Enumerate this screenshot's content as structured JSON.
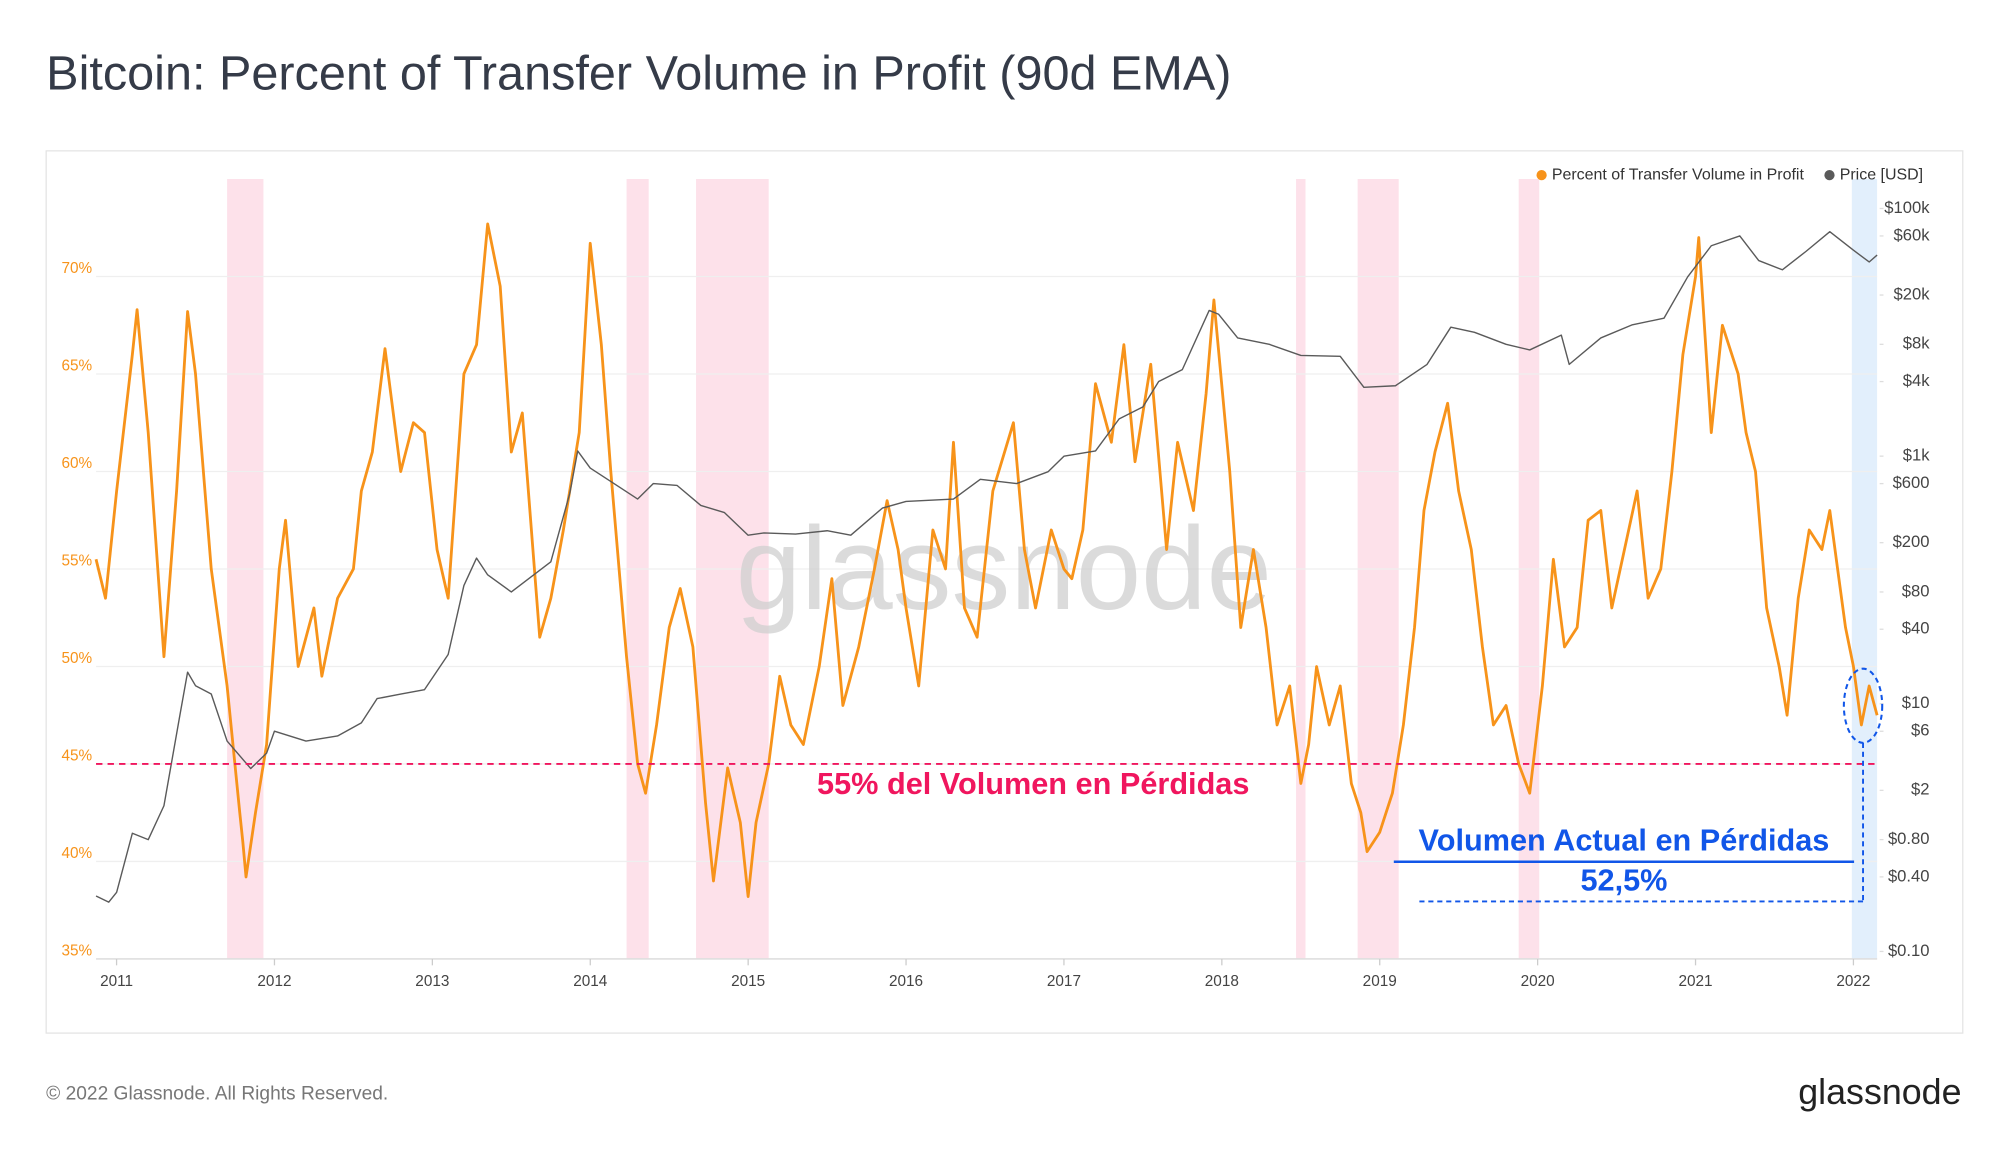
{
  "chart_data": {
    "type": "line",
    "title": "Bitcoin: Percent of Transfer Volume in Profit (90d EMA)",
    "footer": "© 2022 Glassnode. All Rights Reserved.",
    "brand": "glassnode",
    "watermark": "glassnode",
    "legend": "top-right",
    "grid": true,
    "y2log": true,
    "xlim": [
      2010.87,
      2022.15
    ],
    "xticks": [
      2011,
      2012,
      2013,
      2014,
      2015,
      2016,
      2017,
      2018,
      2019,
      2020,
      2021,
      2022
    ],
    "ylim": [
      35,
      75
    ],
    "yticks": [
      {
        "value": 35,
        "label": "35%"
      },
      {
        "value": 40,
        "label": "40%"
      },
      {
        "value": 45,
        "label": "45%"
      },
      {
        "value": 50,
        "label": "50%"
      },
      {
        "value": 55,
        "label": "55%"
      },
      {
        "value": 60,
        "label": "60%"
      },
      {
        "value": 65,
        "label": "65%"
      },
      {
        "value": 70,
        "label": "70%"
      }
    ],
    "y2lim": [
      0.087,
      173000
    ],
    "y2ticks": [
      {
        "value": 0.1,
        "label": "$0.10"
      },
      {
        "value": 0.4,
        "label": "$0.40"
      },
      {
        "value": 0.8,
        "label": "$0.80"
      },
      {
        "value": 2,
        "label": "$2"
      },
      {
        "value": 6,
        "label": "$6"
      },
      {
        "value": 10,
        "label": "$10"
      },
      {
        "value": 40,
        "label": "$40"
      },
      {
        "value": 80,
        "label": "$80"
      },
      {
        "value": 200,
        "label": "$200"
      },
      {
        "value": 600,
        "label": "$600"
      },
      {
        "value": 1000,
        "label": "$1k"
      },
      {
        "value": 4000,
        "label": "$4k"
      },
      {
        "value": 8000,
        "label": "$8k"
      },
      {
        "value": 20000,
        "label": "$20k"
      },
      {
        "value": 60000,
        "label": "$60k"
      },
      {
        "value": 100000,
        "label": "$100k"
      }
    ],
    "shaded_regions": [
      {
        "start": 2011.7,
        "end": 2011.93,
        "color": "#fde1ea"
      },
      {
        "start": 2014.23,
        "end": 2014.37,
        "color": "#fde1ea"
      },
      {
        "start": 2014.67,
        "end": 2015.13,
        "color": "#fde1ea"
      },
      {
        "start": 2018.47,
        "end": 2018.53,
        "color": "#fde1ea"
      },
      {
        "start": 2018.86,
        "end": 2019.12,
        "color": "#fde1ea"
      },
      {
        "start": 2019.88,
        "end": 2020.01,
        "color": "#fde1ea"
      },
      {
        "start": 2021.99,
        "end": 2022.15,
        "color": "#e2effc"
      }
    ],
    "reference_line": {
      "y": 45,
      "color": "#f0165e",
      "label": "55% del Volumen en Pérdidas"
    },
    "current_annotation": {
      "label": "Volumen Actual en Pérdidas",
      "value_text": "52,5%",
      "color": "#1156e8"
    },
    "series": [
      {
        "name": "Percent of Transfer Volume in Profit",
        "color": "#f7931a",
        "axis": "y",
        "x": [
          2010.87,
          2010.93,
          2011.0,
          2011.1,
          2011.13,
          2011.2,
          2011.3,
          2011.38,
          2011.45,
          2011.5,
          2011.6,
          2011.7,
          2011.78,
          2011.8,
          2011.82,
          2011.88,
          2011.95,
          2012.03,
          2012.07,
          2012.15,
          2012.25,
          2012.3,
          2012.4,
          2012.5,
          2012.55,
          2012.62,
          2012.7,
          2012.8,
          2012.88,
          2012.95,
          2013.03,
          2013.1,
          2013.2,
          2013.28,
          2013.35,
          2013.43,
          2013.5,
          2013.57,
          2013.68,
          2013.75,
          2013.83,
          2013.93,
          2014.0,
          2014.07,
          2014.13,
          2014.23,
          2014.3,
          2014.35,
          2014.42,
          2014.5,
          2014.57,
          2014.65,
          2014.73,
          2014.78,
          2014.87,
          2014.95,
          2015.0,
          2015.05,
          2015.13,
          2015.2,
          2015.27,
          2015.35,
          2015.45,
          2015.53,
          2015.6,
          2015.7,
          2015.8,
          2015.88,
          2015.95,
          2016.0,
          2016.08,
          2016.17,
          2016.25,
          2016.3,
          2016.37,
          2016.45,
          2016.55,
          2016.68,
          2016.75,
          2016.82,
          2016.92,
          2017.0,
          2017.05,
          2017.12,
          2017.2,
          2017.3,
          2017.38,
          2017.45,
          2017.55,
          2017.65,
          2017.72,
          2017.82,
          2017.9,
          2017.95,
          2018.05,
          2018.12,
          2018.2,
          2018.28,
          2018.35,
          2018.43,
          2018.5,
          2018.55,
          2018.6,
          2018.68,
          2018.75,
          2018.82,
          2018.88,
          2018.92,
          2019.0,
          2019.08,
          2019.15,
          2019.22,
          2019.28,
          2019.35,
          2019.43,
          2019.5,
          2019.58,
          2019.65,
          2019.72,
          2019.8,
          2019.88,
          2019.95,
          2020.03,
          2020.1,
          2020.17,
          2020.25,
          2020.32,
          2020.4,
          2020.47,
          2020.55,
          2020.63,
          2020.7,
          2020.78,
          2020.85,
          2020.92,
          2021.0,
          2021.02,
          2021.1,
          2021.17,
          2021.27,
          2021.32,
          2021.38,
          2021.45,
          2021.53,
          2021.58,
          2021.65,
          2021.72,
          2021.8,
          2021.85,
          2021.9,
          2021.95,
          2022.0,
          2022.05,
          2022.1,
          2022.15
        ],
        "values": [
          55.5,
          53.5,
          59,
          66,
          68.3,
          62,
          50.5,
          59,
          68.2,
          65,
          55,
          49,
          42.5,
          41,
          39.2,
          42.5,
          46,
          55,
          57.5,
          50,
          53,
          49.5,
          53.5,
          55,
          59,
          61,
          66.3,
          60,
          62.5,
          62,
          56,
          53.5,
          65,
          66.5,
          72.7,
          69.5,
          61,
          63,
          51.5,
          53.5,
          57,
          62,
          71.7,
          66.5,
          60,
          50.5,
          45,
          43.5,
          47,
          52,
          54,
          51,
          43,
          39,
          44.8,
          42,
          38.2,
          42,
          45,
          49.5,
          47,
          46,
          50,
          54.5,
          48,
          51,
          55,
          58.5,
          56,
          53,
          49,
          57,
          55,
          61.5,
          53,
          51.5,
          59,
          62.5,
          56,
          53,
          57,
          55,
          54.5,
          57,
          64.5,
          61.5,
          66.5,
          60.5,
          65.5,
          56,
          61.5,
          58,
          64,
          68.8,
          60,
          52,
          56,
          52,
          47,
          49,
          44,
          46,
          50,
          47,
          49,
          44,
          42.5,
          40.5,
          41.5,
          43.5,
          47,
          52,
          58,
          61,
          63.5,
          59,
          56,
          51,
          47,
          48,
          45,
          43.5,
          49,
          55.5,
          51,
          52,
          57.5,
          58,
          53,
          56,
          59,
          53.5,
          55,
          60,
          66,
          70,
          72,
          62,
          67.5,
          65,
          62,
          60,
          53,
          50,
          47.5,
          53.5,
          57,
          56,
          58,
          55,
          52,
          50,
          47,
          49,
          47.5
        ]
      },
      {
        "name": "Price [USD]",
        "color": "#5a5a5a",
        "axis": "y2",
        "x": [
          2010.87,
          2010.95,
          2011.0,
          2011.1,
          2011.2,
          2011.3,
          2011.4,
          2011.45,
          2011.5,
          2011.6,
          2011.7,
          2011.85,
          2011.95,
          2012.0,
          2012.2,
          2012.4,
          2012.55,
          2012.65,
          2012.8,
          2012.95,
          2013.1,
          2013.2,
          2013.28,
          2013.35,
          2013.5,
          2013.6,
          2013.75,
          2013.87,
          2013.92,
          2014.0,
          2014.15,
          2014.3,
          2014.4,
          2014.55,
          2014.7,
          2014.85,
          2015.0,
          2015.1,
          2015.3,
          2015.5,
          2015.65,
          2015.85,
          2016.0,
          2016.3,
          2016.47,
          2016.7,
          2016.9,
          2017.0,
          2017.2,
          2017.35,
          2017.5,
          2017.6,
          2017.75,
          2017.92,
          2017.98,
          2018.1,
          2018.3,
          2018.5,
          2018.75,
          2018.9,
          2019.1,
          2019.3,
          2019.45,
          2019.6,
          2019.8,
          2019.95,
          2020.15,
          2020.2,
          2020.4,
          2020.6,
          2020.8,
          2020.95,
          2021.1,
          2021.28,
          2021.4,
          2021.55,
          2021.7,
          2021.85,
          2022.0,
          2022.1,
          2022.15
        ],
        "values": [
          0.28,
          0.25,
          0.3,
          0.9,
          0.8,
          1.5,
          8,
          18,
          14,
          12,
          5,
          3,
          4,
          6,
          5,
          5.5,
          7,
          11,
          12,
          13,
          25,
          90,
          150,
          110,
          80,
          100,
          140,
          500,
          1100,
          800,
          600,
          450,
          600,
          580,
          400,
          350,
          230,
          240,
          235,
          250,
          230,
          380,
          430,
          450,
          650,
          600,
          750,
          1000,
          1100,
          2000,
          2500,
          4000,
          5000,
          15000,
          14000,
          9000,
          8000,
          6500,
          6400,
          3600,
          3700,
          5500,
          11000,
          10000,
          8000,
          7200,
          9500,
          5500,
          9000,
          11500,
          13000,
          28000,
          50000,
          60000,
          38000,
          32000,
          45000,
          65000,
          46000,
          37000,
          42000
        ]
      }
    ]
  }
}
